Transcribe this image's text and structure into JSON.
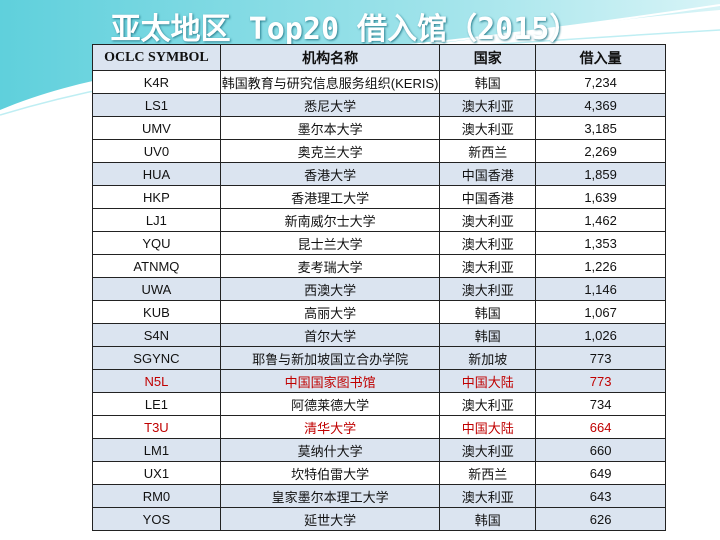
{
  "title": "亚太地区 Top20 借入馆（2015）",
  "headers": [
    "OCLC SYMBOL",
    "机构名称",
    "国家",
    "借入量"
  ],
  "rows": [
    [
      "K4R",
      "韩国教育与研究信息服务组织(KERIS)",
      "韩国",
      "7,234"
    ],
    [
      "LS1",
      "悉尼大学",
      "澳大利亚",
      "4,369"
    ],
    [
      "UMV",
      "墨尔本大学",
      "澳大利亚",
      "3,185"
    ],
    [
      "UV0",
      "奥克兰大学",
      "新西兰",
      "2,269"
    ],
    [
      "HUA",
      "香港大学",
      "中国香港",
      "1,859"
    ],
    [
      "HKP",
      "香港理工大学",
      "中国香港",
      "1,639"
    ],
    [
      "LJ1",
      "新南威尔士大学",
      "澳大利亚",
      "1,462"
    ],
    [
      "YQU",
      "昆士兰大学",
      "澳大利亚",
      "1,353"
    ],
    [
      "ATNMQ",
      "麦考瑞大学",
      "澳大利亚",
      "1,226"
    ],
    [
      "UWA",
      "西澳大学",
      "澳大利亚",
      "1,146"
    ],
    [
      "KUB",
      "高丽大学",
      "韩国",
      "1,067"
    ],
    [
      "S4N",
      "首尔大学",
      "韩国",
      "1,026"
    ],
    [
      "SGYNC",
      "耶鲁与新加坡国立合办学院",
      "新加坡",
      "773"
    ],
    [
      "N5L",
      "中国国家图书馆",
      "中国大陆",
      "773"
    ],
    [
      "LE1",
      "阿德莱德大学",
      "澳大利亚",
      "734"
    ],
    [
      "T3U",
      "清华大学",
      "中国大陆",
      "664"
    ],
    [
      "LM1",
      "莫纳什大学",
      "澳大利亚",
      "660"
    ],
    [
      "UX1",
      "坎特伯雷大学",
      "新西兰",
      "649"
    ],
    [
      "RM0",
      "皇家墨尔本理工大学",
      "澳大利亚",
      "643"
    ],
    [
      "YOS",
      "延世大学",
      "韩国",
      "626"
    ]
  ],
  "highlight_color": "#c00000"
}
